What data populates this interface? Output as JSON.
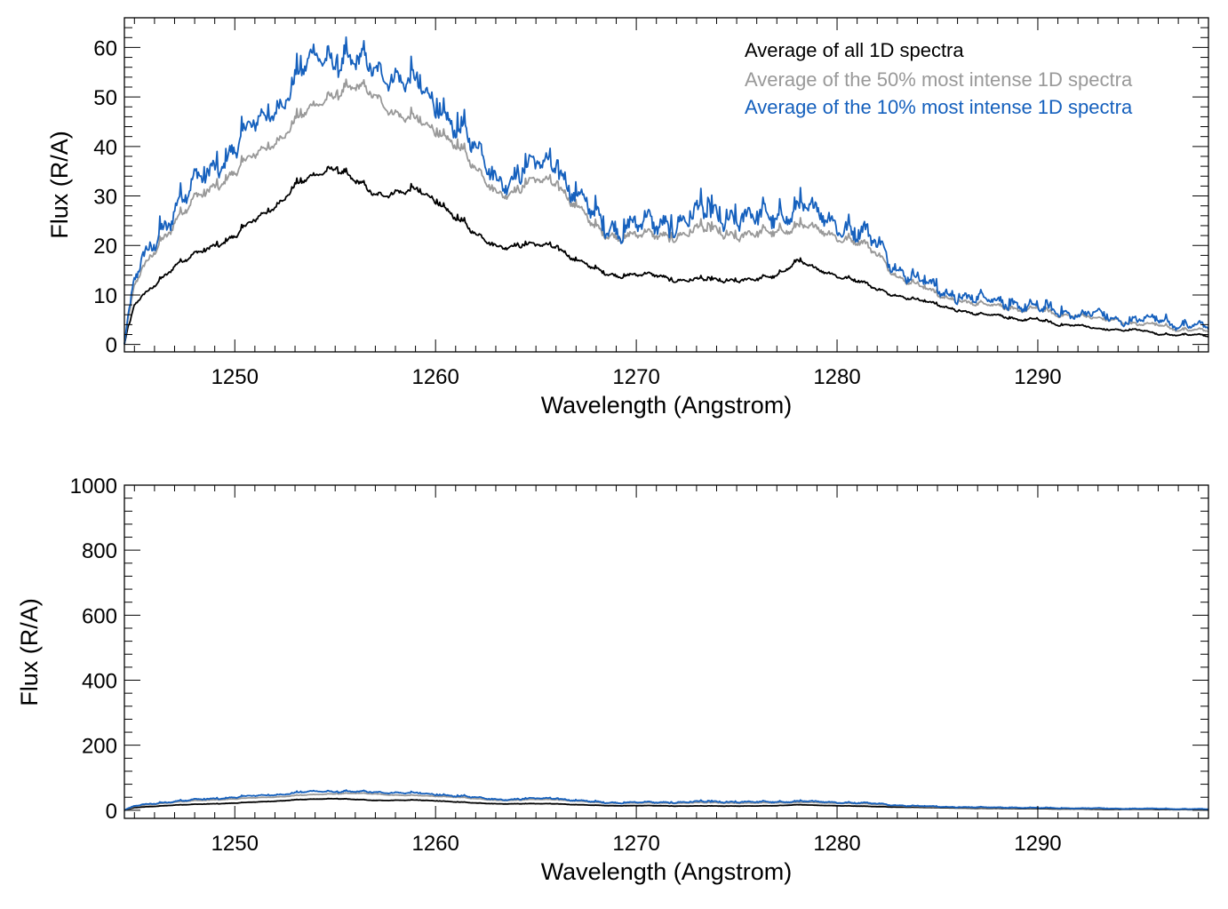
{
  "chart_data": [
    {
      "type": "line",
      "xlabel": "Wavelength (Angstrom)",
      "ylabel": "Flux (R/A)",
      "xlim": [
        1244.5,
        1298.5
      ],
      "ylim": [
        -1.5,
        66
      ],
      "xticks": [
        1250,
        1260,
        1270,
        1280,
        1290
      ],
      "yticks": [
        0,
        10,
        20,
        30,
        40,
        50,
        60
      ],
      "x": [
        1244.5,
        1245,
        1246,
        1247,
        1248,
        1249,
        1250,
        1251,
        1252,
        1253,
        1254,
        1255,
        1256,
        1257,
        1258,
        1259,
        1260,
        1261,
        1262,
        1263,
        1264,
        1265,
        1266,
        1267,
        1268,
        1269,
        1270,
        1271,
        1272,
        1273,
        1274,
        1275,
        1276,
        1277,
        1278,
        1279,
        1280,
        1281,
        1282,
        1283,
        1284,
        1285,
        1286,
        1287,
        1288,
        1289,
        1290,
        1291,
        1292,
        1293,
        1294,
        1295,
        1296,
        1297,
        1298,
        1298.5
      ],
      "series": [
        {
          "name": "Average of all 1D spectra",
          "color": "#000000",
          "values": [
            0,
            8,
            12,
            16,
            18,
            20,
            22,
            25,
            28,
            32,
            34,
            36,
            33,
            30,
            31,
            31,
            29,
            26,
            22,
            20,
            20,
            20,
            20,
            17,
            15,
            14,
            14,
            14,
            13,
            13,
            13,
            13,
            13,
            14,
            17,
            15,
            14,
            13,
            11,
            10,
            9,
            8,
            7,
            6,
            6,
            5,
            5,
            4,
            4,
            3,
            3,
            3,
            2,
            2,
            2,
            1.5
          ],
          "amp": 1.2
        },
        {
          "name": "Average of the 50% most intense 1D spectra",
          "color": "#999999",
          "values": [
            0,
            12,
            19,
            25,
            29,
            32,
            35,
            38,
            41,
            45,
            48,
            51,
            52,
            50,
            47,
            45,
            43,
            41,
            35,
            31,
            31,
            33,
            33,
            28,
            23,
            22,
            22,
            22,
            22,
            23,
            23,
            22,
            22,
            23,
            24,
            23,
            22,
            21,
            18,
            14,
            12,
            10,
            9,
            8,
            8,
            7,
            7,
            6,
            6,
            5,
            5,
            4,
            4,
            3,
            3,
            2.5
          ],
          "amp": 2.0
        },
        {
          "name": "Average of the 10% most intense 1D spectra",
          "color": "#1560bd",
          "values": [
            0,
            13,
            21,
            28,
            32,
            36,
            40,
            44,
            48,
            53,
            58,
            58,
            57,
            55,
            55,
            52,
            48,
            45,
            39,
            34,
            34,
            36,
            37,
            30,
            25,
            24,
            24,
            24,
            25,
            26,
            26,
            26,
            25,
            26,
            28,
            26,
            25,
            23,
            20,
            16,
            13,
            11,
            10,
            9,
            9,
            8,
            7,
            7,
            6,
            6,
            5,
            5,
            5,
            4,
            4,
            3
          ],
          "amp": 4.5
        }
      ],
      "legend": {
        "position": "top-right",
        "entries": [
          "Average of all 1D spectra",
          "Average of the 50% most intense 1D spectra",
          "Average of the 10% most intense 1D spectra"
        ]
      }
    },
    {
      "type": "line",
      "xlabel": "Wavelength (Angstrom)",
      "ylabel": "Flux (R/A)",
      "xlim": [
        1244.5,
        1298.5
      ],
      "ylim": [
        -25,
        1000
      ],
      "xticks": [
        1250,
        1260,
        1270,
        1280,
        1290
      ],
      "yticks": [
        0,
        200,
        400,
        600,
        800,
        1000
      ],
      "use_series_from": 0
    }
  ]
}
